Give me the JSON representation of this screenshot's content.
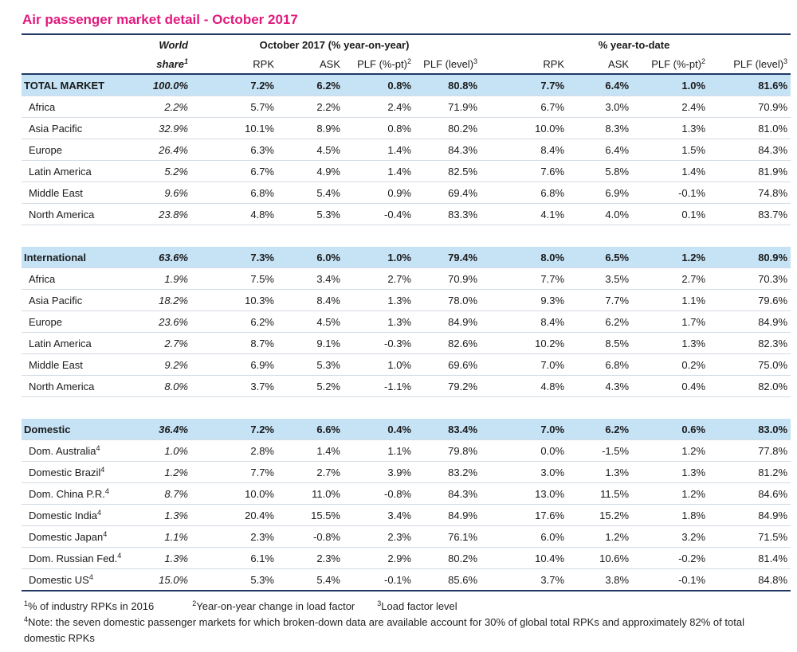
{
  "title": "Air passenger market detail - October 2017",
  "table": {
    "share_header": {
      "lines": [
        "World",
        "share"
      ],
      "sup": "1"
    },
    "groups": [
      {
        "label": "October 2017 (% year-on-year)",
        "columns": [
          {
            "text": "RPK"
          },
          {
            "text": "ASK"
          },
          {
            "text": "PLF (%-pt)",
            "sup": "2"
          },
          {
            "text": "PLF (level)",
            "sup": "3"
          }
        ]
      },
      {
        "label": "% year-to-date",
        "columns": [
          {
            "text": "RPK"
          },
          {
            "text": "ASK"
          },
          {
            "text": "PLF (%-pt)",
            "sup": "2"
          },
          {
            "text": "PLF (level)",
            "sup": "3"
          }
        ]
      }
    ],
    "sections": [
      {
        "row": {
          "name": "TOTAL MARKET",
          "cells": [
            "100.0%",
            "7.2%",
            "6.2%",
            "0.8%",
            "80.8%",
            "7.7%",
            "6.4%",
            "1.0%",
            "81.6%"
          ]
        },
        "rows": [
          {
            "name": "Africa",
            "cells": [
              "2.2%",
              "5.7%",
              "2.2%",
              "2.4%",
              "71.9%",
              "6.7%",
              "3.0%",
              "2.4%",
              "70.9%"
            ]
          },
          {
            "name": "Asia Pacific",
            "cells": [
              "32.9%",
              "10.1%",
              "8.9%",
              "0.8%",
              "80.2%",
              "10.0%",
              "8.3%",
              "1.3%",
              "81.0%"
            ]
          },
          {
            "name": "Europe",
            "cells": [
              "26.4%",
              "6.3%",
              "4.5%",
              "1.4%",
              "84.3%",
              "8.4%",
              "6.4%",
              "1.5%",
              "84.3%"
            ]
          },
          {
            "name": "Latin America",
            "cells": [
              "5.2%",
              "6.7%",
              "4.9%",
              "1.4%",
              "82.5%",
              "7.6%",
              "5.8%",
              "1.4%",
              "81.9%"
            ]
          },
          {
            "name": "Middle East",
            "cells": [
              "9.6%",
              "6.8%",
              "5.4%",
              "0.9%",
              "69.4%",
              "6.8%",
              "6.9%",
              "-0.1%",
              "74.8%"
            ]
          },
          {
            "name": "North America",
            "cells": [
              "23.8%",
              "4.8%",
              "5.3%",
              "-0.4%",
              "83.3%",
              "4.1%",
              "4.0%",
              "0.1%",
              "83.7%"
            ]
          }
        ]
      },
      {
        "row": {
          "name": "International",
          "cells": [
            "63.6%",
            "7.3%",
            "6.0%",
            "1.0%",
            "79.4%",
            "8.0%",
            "6.5%",
            "1.2%",
            "80.9%"
          ]
        },
        "rows": [
          {
            "name": "Africa",
            "cells": [
              "1.9%",
              "7.5%",
              "3.4%",
              "2.7%",
              "70.9%",
              "7.7%",
              "3.5%",
              "2.7%",
              "70.3%"
            ]
          },
          {
            "name": "Asia Pacific",
            "cells": [
              "18.2%",
              "10.3%",
              "8.4%",
              "1.3%",
              "78.0%",
              "9.3%",
              "7.7%",
              "1.1%",
              "79.6%"
            ]
          },
          {
            "name": "Europe",
            "cells": [
              "23.6%",
              "6.2%",
              "4.5%",
              "1.3%",
              "84.9%",
              "8.4%",
              "6.2%",
              "1.7%",
              "84.9%"
            ]
          },
          {
            "name": "Latin America",
            "cells": [
              "2.7%",
              "8.7%",
              "9.1%",
              "-0.3%",
              "82.6%",
              "10.2%",
              "8.5%",
              "1.3%",
              "82.3%"
            ]
          },
          {
            "name": "Middle East",
            "cells": [
              "9.2%",
              "6.9%",
              "5.3%",
              "1.0%",
              "69.6%",
              "7.0%",
              "6.8%",
              "0.2%",
              "75.0%"
            ]
          },
          {
            "name": "North America",
            "cells": [
              "8.0%",
              "3.7%",
              "5.2%",
              "-1.1%",
              "79.2%",
              "4.8%",
              "4.3%",
              "0.4%",
              "82.0%"
            ]
          }
        ]
      },
      {
        "row": {
          "name": "Domestic",
          "cells": [
            "36.4%",
            "7.2%",
            "6.6%",
            "0.4%",
            "83.4%",
            "7.0%",
            "6.2%",
            "0.6%",
            "83.0%"
          ]
        },
        "rows": [
          {
            "name": "Dom. Australia",
            "sup": "4",
            "cells": [
              "1.0%",
              "2.8%",
              "1.4%",
              "1.1%",
              "79.8%",
              "0.0%",
              "-1.5%",
              "1.2%",
              "77.8%"
            ]
          },
          {
            "name": "Domestic Brazil",
            "sup": "4",
            "cells": [
              "1.2%",
              "7.7%",
              "2.7%",
              "3.9%",
              "83.2%",
              "3.0%",
              "1.3%",
              "1.3%",
              "81.2%"
            ]
          },
          {
            "name": "Dom. China P.R.",
            "sup": "4",
            "cells": [
              "8.7%",
              "10.0%",
              "11.0%",
              "-0.8%",
              "84.3%",
              "13.0%",
              "11.5%",
              "1.2%",
              "84.6%"
            ]
          },
          {
            "name": "Domestic India",
            "sup": "4",
            "cells": [
              "1.3%",
              "20.4%",
              "15.5%",
              "3.4%",
              "84.9%",
              "17.6%",
              "15.2%",
              "1.8%",
              "84.9%"
            ]
          },
          {
            "name": "Domestic Japan",
            "sup": "4",
            "cells": [
              "1.1%",
              "2.3%",
              "-0.8%",
              "2.3%",
              "76.1%",
              "6.0%",
              "1.2%",
              "3.2%",
              "71.5%"
            ]
          },
          {
            "name": "Dom. Russian Fed.",
            "sup": "4",
            "cells": [
              "1.3%",
              "6.1%",
              "2.3%",
              "2.9%",
              "80.2%",
              "10.4%",
              "10.6%",
              "-0.2%",
              "81.4%"
            ]
          },
          {
            "name": "Domestic US",
            "sup": "4",
            "cells": [
              "15.0%",
              "5.3%",
              "5.4%",
              "-0.1%",
              "85.6%",
              "3.7%",
              "3.8%",
              "-0.1%",
              "84.8%"
            ]
          }
        ]
      }
    ]
  },
  "footnotes": [
    [
      {
        "sup": "1",
        "text": "% of industry RPKs in 2016"
      },
      {
        "sup": "2",
        "text": "Year-on-year change in load factor"
      },
      {
        "sup": "3",
        "text": "Load factor level"
      }
    ],
    [
      {
        "sup": "4",
        "text": "Note: the seven domestic passenger markets for which broken-down data are available account for 30% of global total RPKs and approximately 82% of total domestic RPKs"
      }
    ]
  ]
}
